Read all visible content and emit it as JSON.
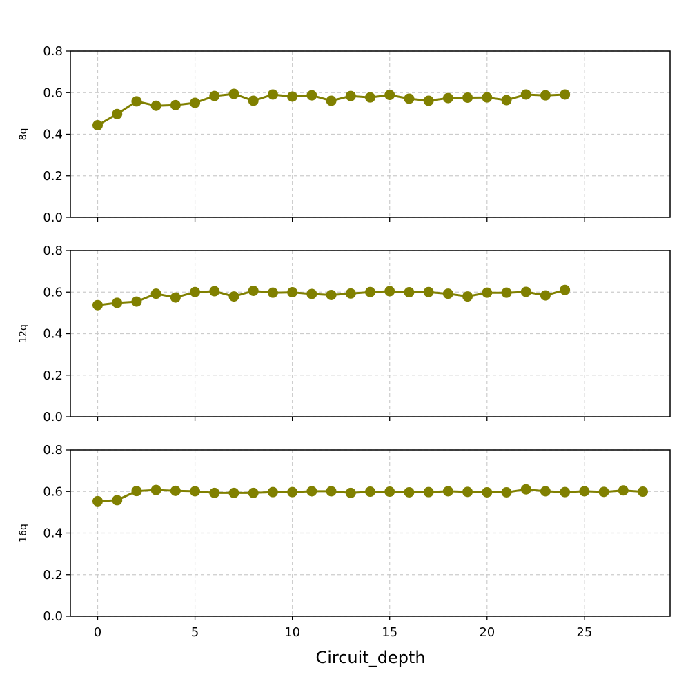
{
  "colors": {
    "series": "#808000",
    "grid": "#cccccc",
    "axis": "#000000",
    "background": "#ffffff"
  },
  "chart_data": {
    "type": "line",
    "xlabel": "Circuit_depth",
    "shared_x_axis": true,
    "xlim": [
      -1.4,
      29.4
    ],
    "xticks": [
      0,
      5,
      10,
      15,
      20,
      25
    ],
    "grid": true,
    "grid_style": "dashed",
    "marker": "circle",
    "panels": [
      {
        "ylabel": "8q",
        "ylim": [
          0,
          0.8
        ],
        "yticks": [
          "0.0",
          "0.2",
          "0.4",
          "0.6",
          "0.8"
        ],
        "x": [
          0,
          1,
          2,
          3,
          4,
          5,
          6,
          7,
          8,
          9,
          10,
          11,
          12,
          13,
          14,
          15,
          16,
          17,
          18,
          19,
          20,
          21,
          22,
          23,
          24
        ],
        "values": [
          0.443,
          0.497,
          0.558,
          0.537,
          0.54,
          0.551,
          0.584,
          0.594,
          0.561,
          0.591,
          0.581,
          0.587,
          0.561,
          0.584,
          0.577,
          0.589,
          0.571,
          0.561,
          0.574,
          0.576,
          0.577,
          0.564,
          0.591,
          0.587,
          0.591
        ]
      },
      {
        "ylabel": "12q",
        "ylim": [
          0,
          0.8
        ],
        "yticks": [
          "0.0",
          "0.2",
          "0.4",
          "0.6",
          "0.8"
        ],
        "x": [
          0,
          1,
          2,
          3,
          4,
          5,
          6,
          7,
          8,
          9,
          10,
          11,
          12,
          13,
          14,
          15,
          16,
          17,
          18,
          19,
          20,
          21,
          22,
          23,
          24
        ],
        "values": [
          0.537,
          0.548,
          0.554,
          0.592,
          0.574,
          0.6,
          0.604,
          0.579,
          0.606,
          0.597,
          0.599,
          0.591,
          0.586,
          0.593,
          0.6,
          0.604,
          0.599,
          0.6,
          0.592,
          0.579,
          0.597,
          0.597,
          0.601,
          0.584,
          0.61
        ]
      },
      {
        "ylabel": "16q",
        "ylim": [
          0,
          0.8
        ],
        "yticks": [
          "0.0",
          "0.2",
          "0.4",
          "0.6",
          "0.8"
        ],
        "x": [
          0,
          1,
          2,
          3,
          4,
          5,
          6,
          7,
          8,
          9,
          10,
          11,
          12,
          13,
          14,
          15,
          16,
          17,
          18,
          19,
          20,
          21,
          22,
          23,
          24,
          25,
          26,
          27,
          28
        ],
        "values": [
          0.553,
          0.558,
          0.602,
          0.607,
          0.603,
          0.601,
          0.593,
          0.593,
          0.593,
          0.597,
          0.597,
          0.601,
          0.601,
          0.593,
          0.599,
          0.599,
          0.596,
          0.597,
          0.601,
          0.598,
          0.596,
          0.596,
          0.61,
          0.601,
          0.597,
          0.601,
          0.598,
          0.605,
          0.599
        ]
      }
    ]
  }
}
